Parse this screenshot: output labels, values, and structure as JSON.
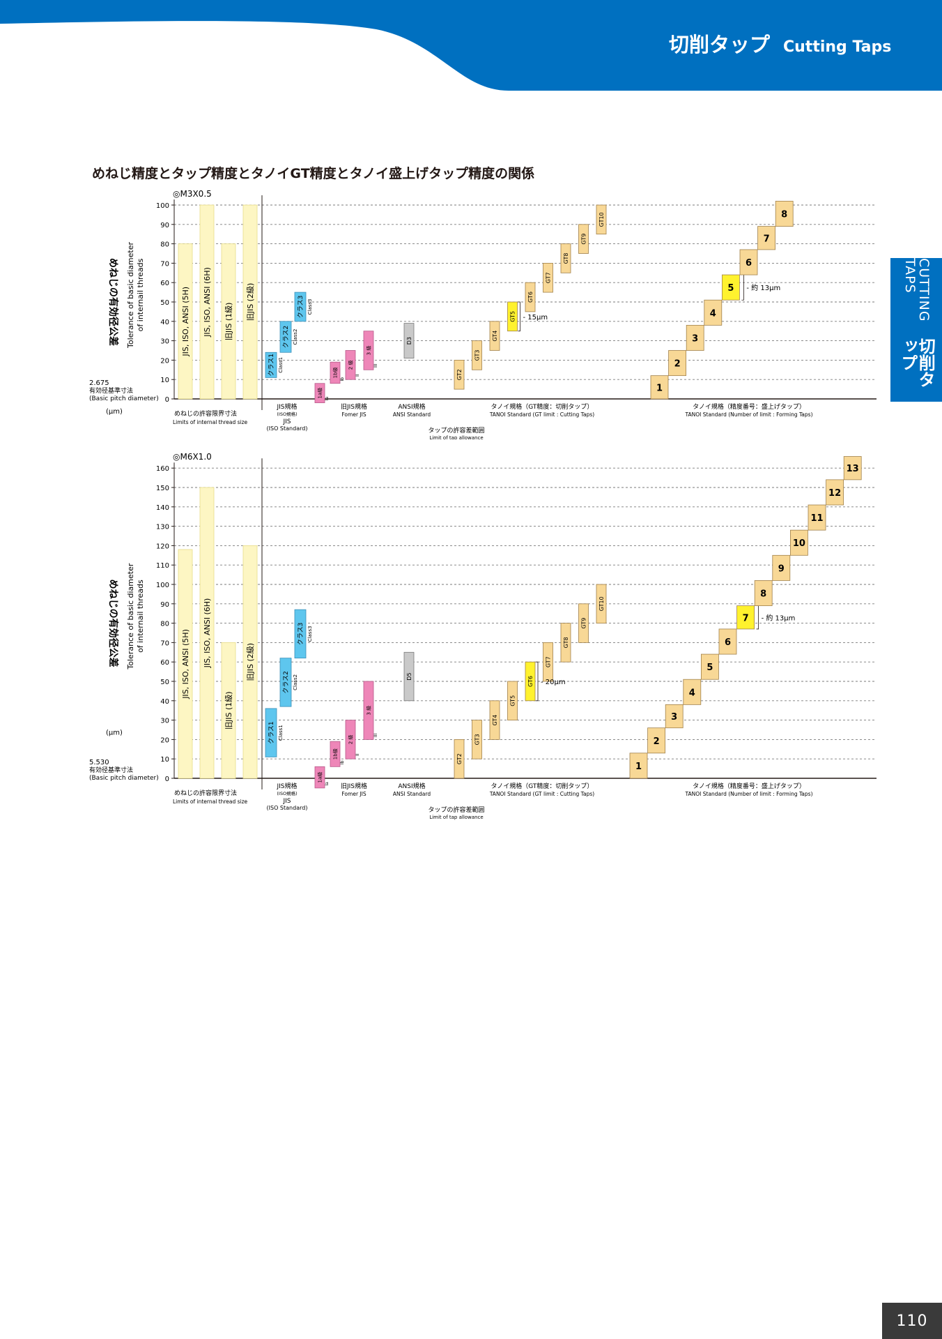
{
  "header": {
    "title_jp": "切削タップ",
    "title_en": "Cutting Taps",
    "colors": {
      "blue": "#0070c0"
    }
  },
  "side_tab": {
    "en": "CUTTING TAPS",
    "jp": "切削タップ"
  },
  "page_number": "110",
  "main_title": "めねじ精度とタップ精度とタノイGT精度とタノイ盛上げタップ精度の関係",
  "common": {
    "y_label_jp": "めねじの有効径公差",
    "y_label_en_1": "Tolerance of basic diameter",
    "y_label_en_2": "of internail threads",
    "unit": "(μm)",
    "basic_jp": "有効径基準寸法",
    "basic_en": "(Basic pitch diameter)",
    "groups": {
      "internal_jp": "めねじの許容限界寸法",
      "internal_en": "Limits of internal thread size",
      "jis_jp": "JIS規格",
      "jis_iso_small": "(ISO規格)",
      "jis_2": "JIS",
      "jis_iso": "(ISO Standard)",
      "oldjis_jp": "旧JIS規格",
      "oldjis_en": "Fomer JIS",
      "ansi_jp": "ANSI規格",
      "ansi_en": "ANSI Standard",
      "tap_jp": "タップの許容差範囲",
      "tap_en": "Limit of tap allowance",
      "gt_en": "TANOI Standard (GT limit : Cutting Taps)",
      "forming_jp": "タノイ規格（精度番号：盛上げタップ）",
      "forming_en": "TANOI Standard (Number of  limit : Forming Taps)"
    }
  },
  "chart_data": [
    {
      "type": "bar",
      "subtitle": "◎M3X0.5",
      "basic_pitch_diameter": "2.675",
      "y_ticks": [
        0,
        10,
        20,
        30,
        40,
        50,
        60,
        70,
        80,
        90,
        100
      ],
      "ylim": [
        0,
        100
      ],
      "gt_group_jp": "タノイ規格（GT精度：切削タップ）",
      "internal_thread_tolerances": [
        {
          "label": "JIS, ISO, ANSI (5H)",
          "range": [
            0,
            80
          ]
        },
        {
          "label": "JIS, ISO, ANSI (6H)",
          "range": [
            0,
            100
          ]
        },
        {
          "label": "旧JIS (1級)",
          "range": [
            0,
            80
          ]
        },
        {
          "label": "旧JIS (2級)",
          "range": [
            0,
            100
          ]
        }
      ],
      "jis_tap_classes": [
        {
          "label": "クラス1",
          "sublabel": "Class1",
          "range": [
            11,
            24
          ]
        },
        {
          "label": "クラス2",
          "sublabel": "Class2",
          "range": [
            24,
            40
          ]
        },
        {
          "label": "クラス3",
          "sublabel": "Class3",
          "range": [
            40,
            55
          ]
        }
      ],
      "old_jis_grades": [
        {
          "label": "1a級",
          "sublabel": "Ia",
          "range": [
            -2,
            8
          ]
        },
        {
          "label": "1b級",
          "sublabel": "Ib",
          "range": [
            8,
            19
          ]
        },
        {
          "label": "2 級",
          "sublabel": "II",
          "range": [
            10,
            25
          ]
        },
        {
          "label": "3 級",
          "sublabel": "III",
          "range": [
            15,
            35
          ]
        }
      ],
      "ansi_limits": [
        {
          "label": "D3",
          "range": [
            21,
            39
          ]
        }
      ],
      "gt_grades": [
        {
          "label": "GT2",
          "range": [
            5,
            20
          ]
        },
        {
          "label": "GT3",
          "range": [
            15,
            30
          ]
        },
        {
          "label": "GT4",
          "range": [
            25,
            40
          ]
        },
        {
          "label": "GT5",
          "range": [
            35,
            50
          ]
        },
        {
          "label": "GT6",
          "range": [
            45,
            60
          ]
        },
        {
          "label": "GT7",
          "range": [
            55,
            70
          ]
        },
        {
          "label": "GT8",
          "range": [
            65,
            80
          ]
        },
        {
          "label": "GT9",
          "range": [
            75,
            90
          ]
        },
        {
          "label": "GT10",
          "range": [
            85,
            100
          ]
        }
      ],
      "gt_annotation": "15μm",
      "forming_grades": [
        {
          "label": "1",
          "range": [
            0,
            12
          ]
        },
        {
          "label": "2",
          "range": [
            12,
            25
          ]
        },
        {
          "label": "3",
          "range": [
            25,
            38
          ]
        },
        {
          "label": "4",
          "range": [
            38,
            51
          ]
        },
        {
          "label": "5",
          "range": [
            51,
            64
          ]
        },
        {
          "label": "6",
          "range": [
            64,
            77
          ]
        },
        {
          "label": "7",
          "range": [
            77,
            89
          ]
        },
        {
          "label": "8",
          "range": [
            89,
            102
          ]
        }
      ],
      "forming_annotation": "約 13μm",
      "highlight": {
        "gt": "GT5",
        "forming": "5"
      }
    },
    {
      "type": "bar",
      "subtitle": "◎M6X1.0",
      "basic_pitch_diameter": "5.530",
      "y_ticks": [
        0,
        10,
        20,
        30,
        40,
        50,
        60,
        70,
        80,
        90,
        100,
        110,
        120,
        130,
        140,
        150,
        160
      ],
      "ylim": [
        0,
        160
      ],
      "gt_group_jp": "タノイ規格（GT精度：切削タップ）",
      "internal_thread_tolerances": [
        {
          "label": "JIS, ISO, ANSI (5H)",
          "range": [
            0,
            118
          ]
        },
        {
          "label": "JIS, ISO, ANSI (6H)",
          "range": [
            0,
            150
          ]
        },
        {
          "label": "旧JIS (1級)",
          "range": [
            0,
            70
          ]
        },
        {
          "label": "旧JIS (2級)",
          "range": [
            0,
            120
          ]
        }
      ],
      "jis_tap_classes": [
        {
          "label": "クラス1",
          "sublabel": "Class1",
          "range": [
            11,
            36
          ]
        },
        {
          "label": "クラス2",
          "sublabel": "Class2",
          "range": [
            37,
            62
          ]
        },
        {
          "label": "クラス3",
          "sublabel": "Class3",
          "range": [
            62,
            87
          ]
        }
      ],
      "old_jis_grades": [
        {
          "label": "1a級",
          "sublabel": "Ia",
          "range": [
            -5,
            6
          ]
        },
        {
          "label": "1b級",
          "sublabel": "Ib",
          "range": [
            6,
            19
          ]
        },
        {
          "label": "2 級",
          "sublabel": "II",
          "range": [
            10,
            30
          ]
        },
        {
          "label": "3 級",
          "sublabel": "III",
          "range": [
            20,
            50
          ]
        }
      ],
      "ansi_limits": [
        {
          "label": "D5",
          "range": [
            40,
            65
          ]
        }
      ],
      "gt_grades": [
        {
          "label": "GT2",
          "range": [
            0,
            20
          ]
        },
        {
          "label": "GT3",
          "range": [
            10,
            30
          ]
        },
        {
          "label": "GT4",
          "range": [
            20,
            40
          ]
        },
        {
          "label": "GT5",
          "range": [
            30,
            50
          ]
        },
        {
          "label": "GT6",
          "range": [
            40,
            60
          ]
        },
        {
          "label": "GT7",
          "range": [
            50,
            70
          ]
        },
        {
          "label": "GT8",
          "range": [
            60,
            80
          ]
        },
        {
          "label": "GT9",
          "range": [
            70,
            90
          ]
        },
        {
          "label": "GT10",
          "range": [
            80,
            100
          ]
        }
      ],
      "gt_annotation": "20μm",
      "forming_grades": [
        {
          "label": "1",
          "range": [
            0,
            13
          ]
        },
        {
          "label": "2",
          "range": [
            13,
            26
          ]
        },
        {
          "label": "3",
          "range": [
            26,
            38
          ]
        },
        {
          "label": "4",
          "range": [
            38,
            51
          ]
        },
        {
          "label": "5",
          "range": [
            51,
            64
          ]
        },
        {
          "label": "6",
          "range": [
            64,
            77
          ]
        },
        {
          "label": "7",
          "range": [
            77,
            89
          ]
        },
        {
          "label": "8",
          "range": [
            89,
            102
          ]
        },
        {
          "label": "9",
          "range": [
            102,
            115
          ]
        },
        {
          "label": "10",
          "range": [
            115,
            128
          ]
        },
        {
          "label": "11",
          "range": [
            128,
            141
          ]
        },
        {
          "label": "12",
          "range": [
            141,
            154
          ]
        },
        {
          "label": "13",
          "range": [
            154,
            166
          ]
        }
      ],
      "forming_annotation": "約 13μm",
      "highlight": {
        "gt": "GT6",
        "forming": "7"
      }
    }
  ],
  "colors": {
    "pale_yellow": "#fdf6c3",
    "pale_yellow_edge": "#e8dc8a",
    "cyan": "#5ec6ee",
    "pink": "#ee86b8",
    "gray": "#c9c9c9",
    "tan": "#f8d896",
    "tan_edge": "#a0804a",
    "highlight": "#fff22e"
  }
}
